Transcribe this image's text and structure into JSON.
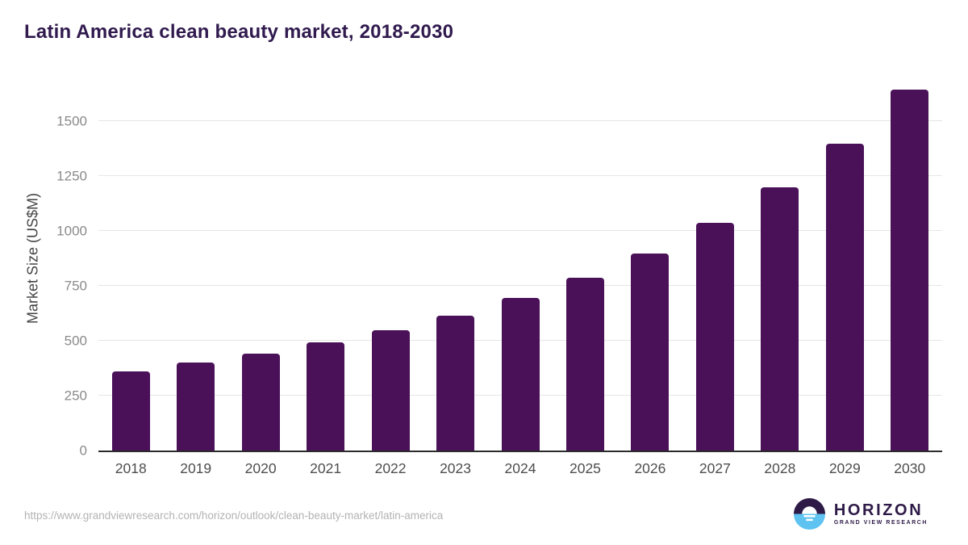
{
  "title": "Latin America clean beauty market, 2018-2030",
  "source_url": "https://www.grandviewresearch.com/horizon/outlook/clean-beauty-market/latin-america",
  "logo": {
    "name": "HORIZON",
    "subtitle": "GRAND VIEW RESEARCH",
    "icon": "sunrise-horizon-icon"
  },
  "colors": {
    "bar": "#4a1158",
    "title": "#301a4e",
    "gridline": "#e6e6e6",
    "axis_line": "#2b2b2b",
    "y_tick_label": "#8a8a8a",
    "x_tick_label": "#4d4d4d",
    "url_text": "#b3b3b3",
    "logo_purple": "#2e1a47",
    "logo_blue": "#5ec3f0"
  },
  "chart_data": {
    "type": "bar",
    "title": "Latin America clean beauty market, 2018-2030",
    "categories": [
      "2018",
      "2019",
      "2020",
      "2021",
      "2022",
      "2023",
      "2024",
      "2025",
      "2026",
      "2027",
      "2028",
      "2029",
      "2030"
    ],
    "values": [
      362,
      400,
      442,
      493,
      549,
      614,
      696,
      786,
      898,
      1036,
      1198,
      1398,
      1645
    ],
    "xlabel": "",
    "ylabel": "Market Size (US$M)",
    "ylim": [
      0,
      1684
    ],
    "yticks": [
      0,
      250,
      500,
      750,
      1000,
      1250,
      1500
    ],
    "grid": true,
    "legend": false,
    "bar_color": "#4a1158"
  }
}
